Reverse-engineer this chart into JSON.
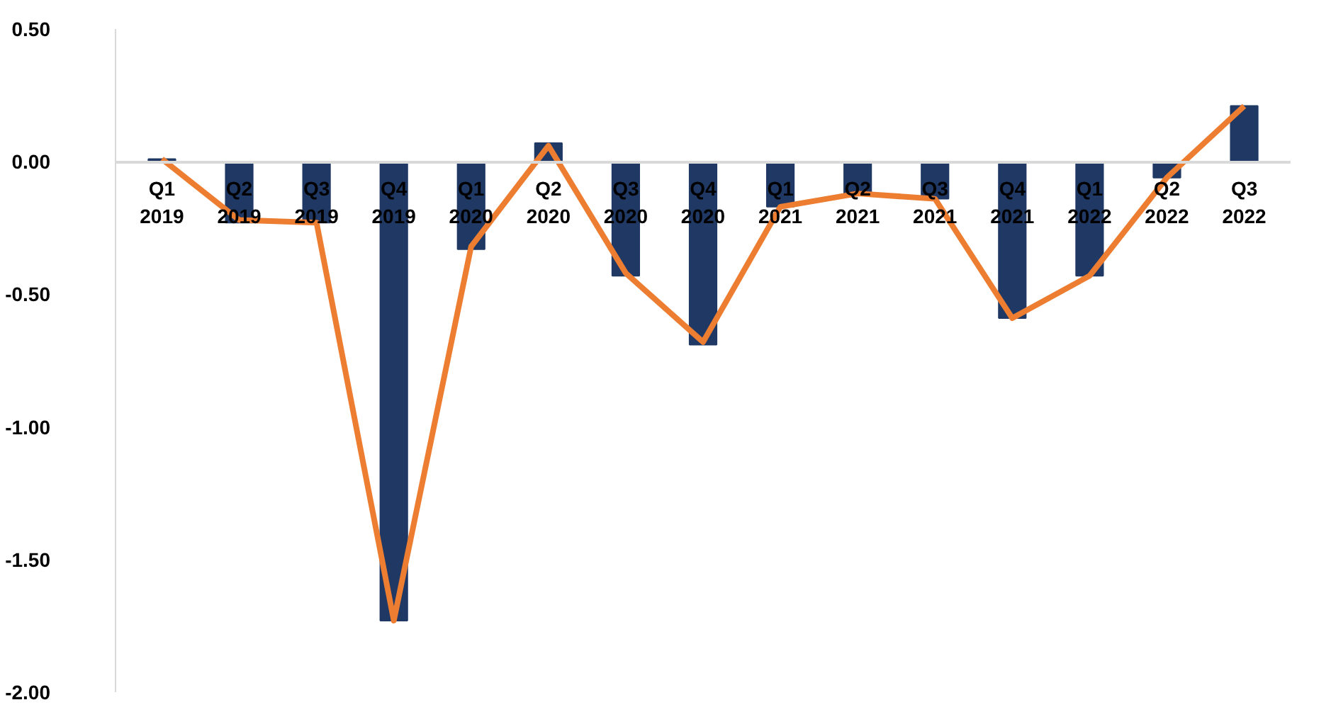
{
  "chart_data": {
    "type": "bar",
    "categories": [
      "Q1\n2019",
      "Q2\n2019",
      "Q3\n2019",
      "Q4\n2019",
      "Q1\n2020",
      "Q2\n2020",
      "Q3\n2020",
      "Q4\n2020",
      "Q1\n2021",
      "Q2\n2021",
      "Q3\n2021",
      "Q4\n2021",
      "Q1\n2022",
      "Q2\n2022",
      "Q3\n2022"
    ],
    "series": [
      {
        "color": "#1f3864",
        "values": [
          0.01,
          -0.23,
          -0.23,
          -1.73,
          -0.33,
          0.07,
          -0.43,
          -0.69,
          -0.17,
          -0.12,
          -0.14,
          -0.59,
          -0.43,
          -0.06,
          0.21
        ]
      },
      {
        "type": "line",
        "color": "#ed7d31",
        "values": [
          0.01,
          -0.22,
          -0.23,
          -1.73,
          -0.32,
          0.06,
          -0.42,
          -0.68,
          -0.17,
          -0.12,
          -0.14,
          -0.59,
          -0.43,
          -0.06,
          0.21
        ]
      }
    ],
    "ylim": [
      -2.0,
      0.5
    ],
    "yticks": [
      {
        "value": -2.0,
        "label": "-2.00"
      },
      {
        "value": -1.5,
        "label": "-1.50"
      },
      {
        "value": -1.0,
        "label": "-1.00"
      },
      {
        "value": -0.5,
        "label": "-0.50"
      },
      {
        "value": 0.0,
        "label": "0.00"
      },
      {
        "value": 0.5,
        "label": "0.50"
      }
    ],
    "grid": false
  }
}
